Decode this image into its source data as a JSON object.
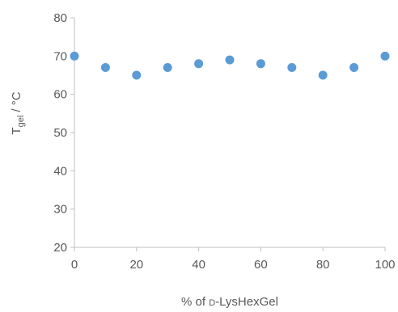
{
  "chart_data": {
    "type": "scatter",
    "title": "",
    "xlabel": "% of D-LysHexGel",
    "xlabel_prefix": "% of ",
    "xlabel_smallcaps": "d",
    "xlabel_suffix": "-LysHexGel",
    "ylabel_main": "T",
    "ylabel_sub": "gel",
    "ylabel_suffix": " / °C",
    "xlim": [
      0,
      100
    ],
    "ylim": [
      20,
      80
    ],
    "x_ticks": [
      0,
      20,
      40,
      60,
      80,
      100
    ],
    "y_ticks": [
      20,
      30,
      40,
      50,
      60,
      70,
      80
    ],
    "grid": false,
    "marker_color": "#5b9bd5",
    "axis_color": "#bfbfbf",
    "text_color": "#595959",
    "series": [
      {
        "x": [
          0,
          10,
          20,
          30,
          40,
          50,
          60,
          70,
          80,
          90,
          100
        ],
        "y": [
          70,
          67,
          65,
          67,
          68,
          69,
          68,
          67,
          65,
          67,
          70
        ]
      }
    ]
  }
}
